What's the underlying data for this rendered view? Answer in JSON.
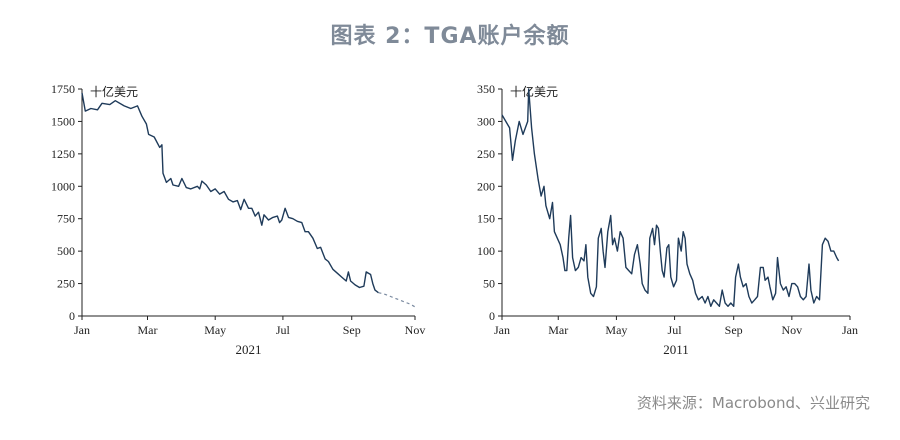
{
  "title": "图表 2：TGA账户余额",
  "source": "资料来源：Macrobond、兴业研究",
  "colors": {
    "line": "#1f3b5a",
    "projection": "#7a8aa0",
    "title": "#7f8a98"
  },
  "chart_data": [
    {
      "type": "line",
      "unit_label": "十亿美元",
      "xlabel": "2021",
      "ylim": [
        0,
        1750
      ],
      "yticks": [
        0,
        250,
        500,
        750,
        1000,
        1250,
        1500,
        1750
      ],
      "xlim": [
        0,
        300
      ],
      "xticks": [
        {
          "label": "Jan",
          "x": 0
        },
        {
          "label": "Mar",
          "x": 59
        },
        {
          "label": "May",
          "x": 120
        },
        {
          "label": "Jul",
          "x": 181
        },
        {
          "label": "Sep",
          "x": 243
        },
        {
          "label": "Nov",
          "x": 304
        }
      ],
      "series": [
        {
          "values": [
            [
              0,
              1720
            ],
            [
              3,
              1580
            ],
            [
              8,
              1600
            ],
            [
              14,
              1590
            ],
            [
              18,
              1640
            ],
            [
              25,
              1630
            ],
            [
              30,
              1660
            ],
            [
              38,
              1620
            ],
            [
              44,
              1600
            ],
            [
              50,
              1620
            ],
            [
              54,
              1540
            ],
            [
              58,
              1480
            ],
            [
              60,
              1400
            ],
            [
              65,
              1380
            ],
            [
              70,
              1300
            ],
            [
              72,
              1320
            ],
            [
              73,
              1100
            ],
            [
              76,
              1030
            ],
            [
              80,
              1060
            ],
            [
              82,
              1010
            ],
            [
              87,
              1000
            ],
            [
              90,
              1060
            ],
            [
              94,
              990
            ],
            [
              98,
              980
            ],
            [
              104,
              1000
            ],
            [
              106,
              980
            ],
            [
              108,
              1040
            ],
            [
              112,
              1010
            ],
            [
              116,
              960
            ],
            [
              120,
              980
            ],
            [
              124,
              940
            ],
            [
              128,
              960
            ],
            [
              132,
              900
            ],
            [
              136,
              880
            ],
            [
              140,
              890
            ],
            [
              143,
              820
            ],
            [
              146,
              900
            ],
            [
              150,
              830
            ],
            [
              153,
              830
            ],
            [
              156,
              770
            ],
            [
              159,
              800
            ],
            [
              162,
              700
            ],
            [
              164,
              780
            ],
            [
              168,
              740
            ],
            [
              172,
              760
            ],
            [
              176,
              770
            ],
            [
              178,
              720
            ],
            [
              180,
              740
            ],
            [
              183,
              830
            ],
            [
              186,
              760
            ],
            [
              190,
              750
            ],
            [
              194,
              730
            ],
            [
              198,
              720
            ],
            [
              201,
              650
            ],
            [
              204,
              650
            ],
            [
              208,
              600
            ],
            [
              212,
              520
            ],
            [
              215,
              530
            ],
            [
              219,
              440
            ],
            [
              222,
              420
            ],
            [
              226,
              360
            ],
            [
              230,
              330
            ],
            [
              234,
              300
            ],
            [
              238,
              270
            ],
            [
              240,
              340
            ],
            [
              242,
              270
            ],
            [
              246,
              240
            ],
            [
              250,
              220
            ],
            [
              254,
              230
            ],
            [
              256,
              340
            ],
            [
              260,
              320
            ],
            [
              262,
              250
            ],
            [
              264,
              200
            ],
            [
              267,
              180
            ]
          ],
          "projection": [
            [
              267,
              180
            ],
            [
              272,
              170
            ],
            [
              278,
              150
            ],
            [
              284,
              130
            ],
            [
              290,
              110
            ],
            [
              296,
              90
            ],
            [
              300,
              70
            ]
          ]
        }
      ]
    },
    {
      "type": "line",
      "unit_label": "十亿美元",
      "xlabel": "2011",
      "ylim": [
        0,
        350
      ],
      "yticks": [
        0,
        50,
        100,
        150,
        200,
        250,
        300,
        350
      ],
      "xlim": [
        0,
        365
      ],
      "xticks": [
        {
          "label": "Jan",
          "x": 0
        },
        {
          "label": "Mar",
          "x": 59
        },
        {
          "label": "May",
          "x": 120
        },
        {
          "label": "Jul",
          "x": 181
        },
        {
          "label": "Sep",
          "x": 243
        },
        {
          "label": "Nov",
          "x": 304
        },
        {
          "label": "Jan",
          "x": 365
        }
      ],
      "series": [
        {
          "values": [
            [
              0,
              310
            ],
            [
              4,
              300
            ],
            [
              8,
              290
            ],
            [
              11,
              240
            ],
            [
              14,
              270
            ],
            [
              18,
              300
            ],
            [
              22,
              280
            ],
            [
              27,
              300
            ],
            [
              28,
              350
            ],
            [
              31,
              290
            ],
            [
              34,
              250
            ],
            [
              38,
              210
            ],
            [
              41,
              185
            ],
            [
              44,
              200
            ],
            [
              46,
              170
            ],
            [
              50,
              150
            ],
            [
              53,
              175
            ],
            [
              55,
              130
            ],
            [
              58,
              120
            ],
            [
              61,
              110
            ],
            [
              64,
              90
            ],
            [
              66,
              70
            ],
            [
              68,
              70
            ],
            [
              70,
              120
            ],
            [
              72,
              155
            ],
            [
              74,
              90
            ],
            [
              77,
              70
            ],
            [
              80,
              75
            ],
            [
              83,
              90
            ],
            [
              86,
              85
            ],
            [
              88,
              110
            ],
            [
              90,
              60
            ],
            [
              93,
              35
            ],
            [
              96,
              30
            ],
            [
              99,
              45
            ],
            [
              101,
              120
            ],
            [
              104,
              135
            ],
            [
              106,
              100
            ],
            [
              108,
              75
            ],
            [
              111,
              130
            ],
            [
              114,
              155
            ],
            [
              116,
              110
            ],
            [
              118,
              120
            ],
            [
              121,
              100
            ],
            [
              124,
              130
            ],
            [
              127,
              120
            ],
            [
              130,
              75
            ],
            [
              133,
              70
            ],
            [
              136,
              65
            ],
            [
              139,
              95
            ],
            [
              142,
              110
            ],
            [
              145,
              80
            ],
            [
              147,
              50
            ],
            [
              150,
              40
            ],
            [
              153,
              35
            ],
            [
              155,
              120
            ],
            [
              158,
              135
            ],
            [
              160,
              110
            ],
            [
              162,
              140
            ],
            [
              164,
              135
            ],
            [
              166,
              100
            ],
            [
              168,
              70
            ],
            [
              170,
              60
            ],
            [
              173,
              105
            ],
            [
              175,
              110
            ],
            [
              177,
              60
            ],
            [
              180,
              45
            ],
            [
              183,
              55
            ],
            [
              185,
              120
            ],
            [
              188,
              100
            ],
            [
              190,
              130
            ],
            [
              192,
              120
            ],
            [
              194,
              80
            ],
            [
              197,
              65
            ],
            [
              200,
              55
            ],
            [
              203,
              35
            ],
            [
              206,
              25
            ],
            [
              210,
              30
            ],
            [
              213,
              20
            ],
            [
              216,
              30
            ],
            [
              219,
              15
            ],
            [
              222,
              25
            ],
            [
              225,
              20
            ],
            [
              228,
              15
            ],
            [
              231,
              40
            ],
            [
              234,
              20
            ],
            [
              237,
              15
            ],
            [
              240,
              20
            ],
            [
              243,
              15
            ],
            [
              245,
              60
            ],
            [
              248,
              80
            ],
            [
              250,
              60
            ],
            [
              253,
              45
            ],
            [
              256,
              50
            ],
            [
              259,
              30
            ],
            [
              262,
              20
            ],
            [
              265,
              25
            ],
            [
              268,
              30
            ],
            [
              271,
              75
            ],
            [
              274,
              75
            ],
            [
              276,
              55
            ],
            [
              279,
              60
            ],
            [
              281,
              45
            ],
            [
              284,
              25
            ],
            [
              287,
              35
            ],
            [
              289,
              90
            ],
            [
              292,
              50
            ],
            [
              295,
              40
            ],
            [
              298,
              45
            ],
            [
              301,
              30
            ],
            [
              304,
              50
            ],
            [
              307,
              50
            ],
            [
              310,
              45
            ],
            [
              313,
              30
            ],
            [
              316,
              25
            ],
            [
              319,
              30
            ],
            [
              322,
              80
            ],
            [
              324,
              40
            ],
            [
              327,
              20
            ],
            [
              330,
              30
            ],
            [
              333,
              25
            ],
            [
              336,
              110
            ],
            [
              339,
              120
            ],
            [
              342,
              115
            ],
            [
              345,
              100
            ],
            [
              348,
              100
            ],
            [
              351,
              90
            ],
            [
              353,
              85
            ]
          ]
        }
      ]
    }
  ]
}
